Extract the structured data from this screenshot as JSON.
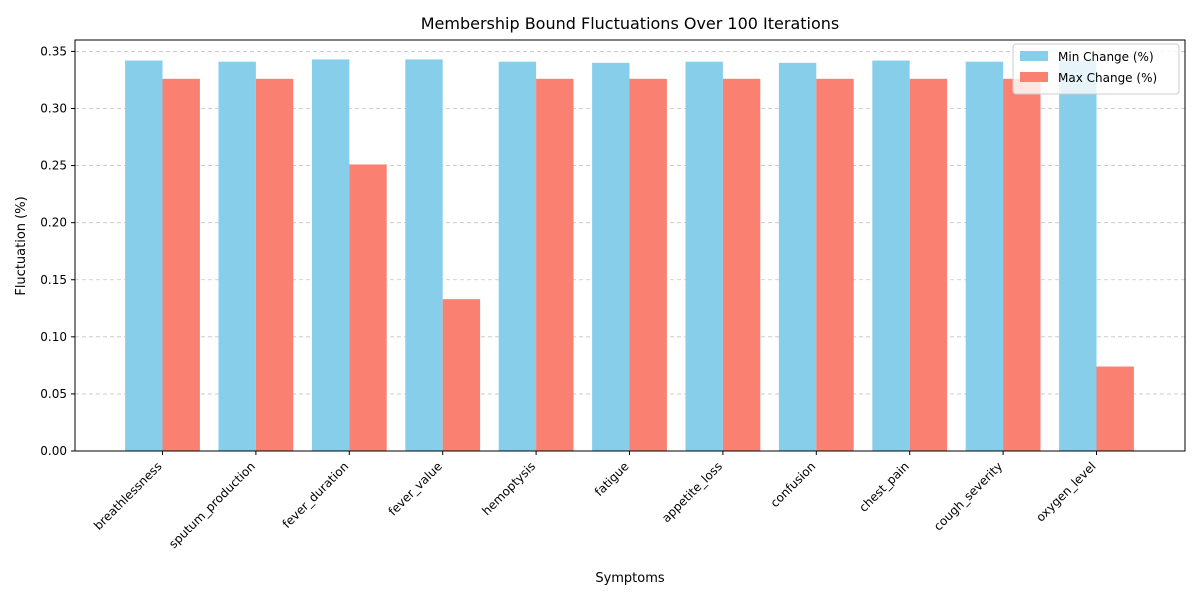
{
  "chart_data": {
    "type": "bar",
    "title": "Membership Bound Fluctuations Over 100 Iterations",
    "xlabel": "Symptoms",
    "ylabel": "Fluctuation (%)",
    "categories": [
      "breathlessness",
      "sputum_production",
      "fever_duration",
      "fever_value",
      "hemoptysis",
      "fatigue",
      "appetite_loss",
      "confusion",
      "chest_pain",
      "cough_severity",
      "oxygen_level"
    ],
    "series": [
      {
        "name": "Min Change (%)",
        "color": "#87ceeb",
        "values": [
          0.342,
          0.341,
          0.343,
          0.343,
          0.341,
          0.34,
          0.341,
          0.34,
          0.342,
          0.341,
          0.342
        ]
      },
      {
        "name": "Max Change (%)",
        "color": "#fa8072",
        "values": [
          0.326,
          0.326,
          0.251,
          0.133,
          0.326,
          0.326,
          0.326,
          0.326,
          0.326,
          0.326,
          0.074
        ]
      }
    ],
    "ylim": [
      0,
      0.36
    ],
    "yticks": [
      "0.00",
      "0.05",
      "0.10",
      "0.15",
      "0.20",
      "0.25",
      "0.30",
      "0.35"
    ],
    "grid": "y-dashed",
    "legend": "top-right"
  }
}
